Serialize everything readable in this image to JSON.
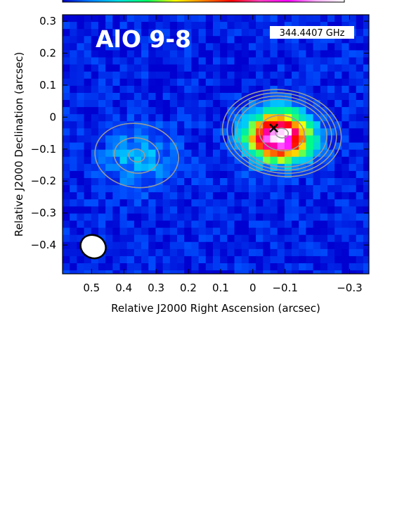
{
  "chart_data": {
    "type": "heatmap",
    "title": "AlO 9-8",
    "frequency_label": "344.4407 GHz",
    "xlabel": "Relative J2000 Right Ascension (arcsec)",
    "ylabel": "Relative J2000 Declination (arcsec)",
    "xlim": [
      0.59,
      -0.36
    ],
    "ylim": [
      -0.49,
      0.32
    ],
    "x_ticks": [
      0.5,
      0.4,
      0.3,
      0.2,
      0.1,
      0,
      -0.1,
      -0.3
    ],
    "x_tick_labels": [
      "0.5",
      "0.4",
      "0.3",
      "0.2",
      "0.1",
      "0",
      "−0.1",
      "−0.3"
    ],
    "y_ticks": [
      0.3,
      0.2,
      0.1,
      0,
      -0.1,
      -0.2,
      -0.3,
      -0.4
    ],
    "y_tick_labels": [
      "0.3",
      "0.2",
      "0.1",
      "0",
      "−0.1",
      "−0.2",
      "−0.3",
      "−0.4"
    ],
    "colormap": [
      "#0000d0",
      "#0050ff",
      "#00c8ff",
      "#00ff80",
      "#ffff00",
      "#ff8000",
      "#ff0000",
      "#ff00ff",
      "#ffffff"
    ],
    "emission_peaks": [
      {
        "ra": -0.07,
        "dec": -0.05,
        "peak": 1.0
      },
      {
        "ra": 0.36,
        "dec": -0.12,
        "peak": 0.18
      }
    ],
    "marker": {
      "symbol": "×",
      "ra": -0.065,
      "dec": -0.035
    },
    "contour_color": "#999999",
    "contour_groups": [
      {
        "ra": -0.09,
        "dec": -0.05,
        "semi_axes_arcsec": [
          [
            0.185,
            0.135
          ],
          [
            0.17,
            0.125
          ],
          [
            0.155,
            0.115
          ],
          [
            0.14,
            0.105
          ],
          [
            0.07,
            0.055
          ],
          [
            0.02,
            0.015
          ]
        ]
      },
      {
        "ra": 0.36,
        "dec": -0.12,
        "semi_axes_arcsec": [
          [
            0.13,
            0.1
          ],
          [
            0.07,
            0.055
          ],
          [
            0.025,
            0.02
          ]
        ]
      }
    ],
    "beam": {
      "ra": 0.495,
      "dec": -0.405,
      "major_arcsec": 0.08,
      "minor_arcsec": 0.065,
      "fill": "#ffffff",
      "edge": "#000000"
    },
    "colorbar_colors": [
      "#0000c0",
      "#0080ff",
      "#00e0e0",
      "#00ff60",
      "#ffff00",
      "#ff8000",
      "#ff0000",
      "#ff40c0",
      "#ff00ff",
      "#ffb0ff",
      "#ffffff"
    ],
    "grid": false
  }
}
